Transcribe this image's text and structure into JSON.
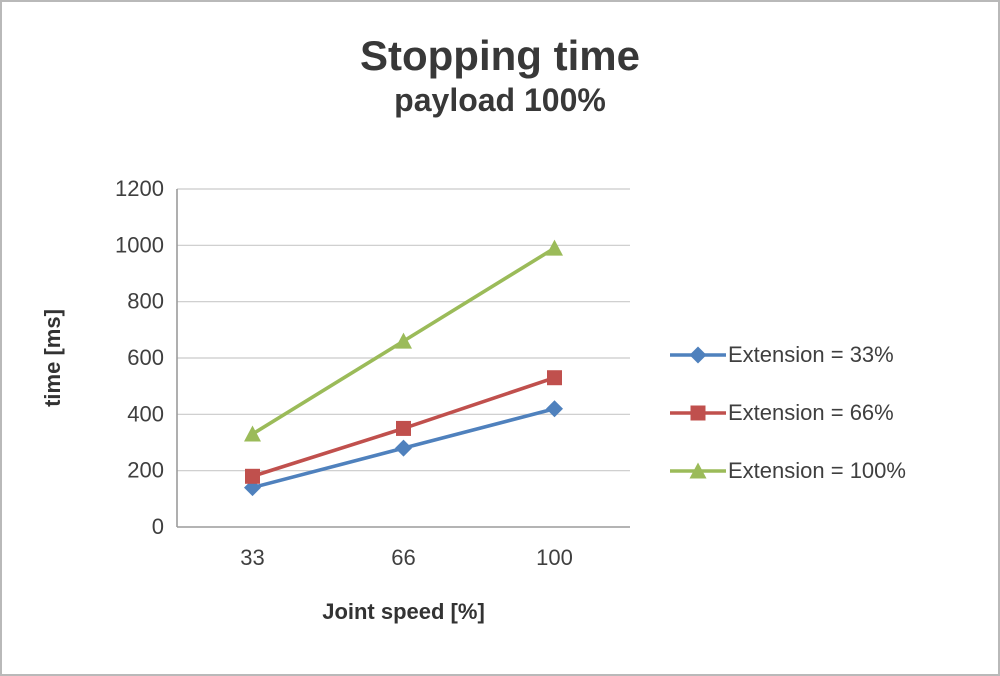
{
  "title": "Stopping time",
  "subtitle": "payload 100%",
  "chart_data": {
    "type": "line",
    "categories": [
      "33",
      "66",
      "100"
    ],
    "xlabel": "Joint speed [%]",
    "ylabel": "time [ms]",
    "ylim": [
      0,
      1200
    ],
    "ytick_step": 200,
    "grid": true,
    "legend_position": "right",
    "colors": {
      "axis_line": "#9b9b9b",
      "gridline": "#c9c9c9",
      "tick_text": "#3f3f3f"
    },
    "series": [
      {
        "name": "Extension = 33%",
        "values": [
          140,
          280,
          420
        ],
        "color": "#4F81BD",
        "marker": "diamond"
      },
      {
        "name": "Extension = 66%",
        "values": [
          180,
          350,
          530
        ],
        "color": "#C0504D",
        "marker": "square"
      },
      {
        "name": "Extension = 100%",
        "values": [
          330,
          660,
          990
        ],
        "color": "#9BBB59",
        "marker": "triangle"
      }
    ]
  }
}
